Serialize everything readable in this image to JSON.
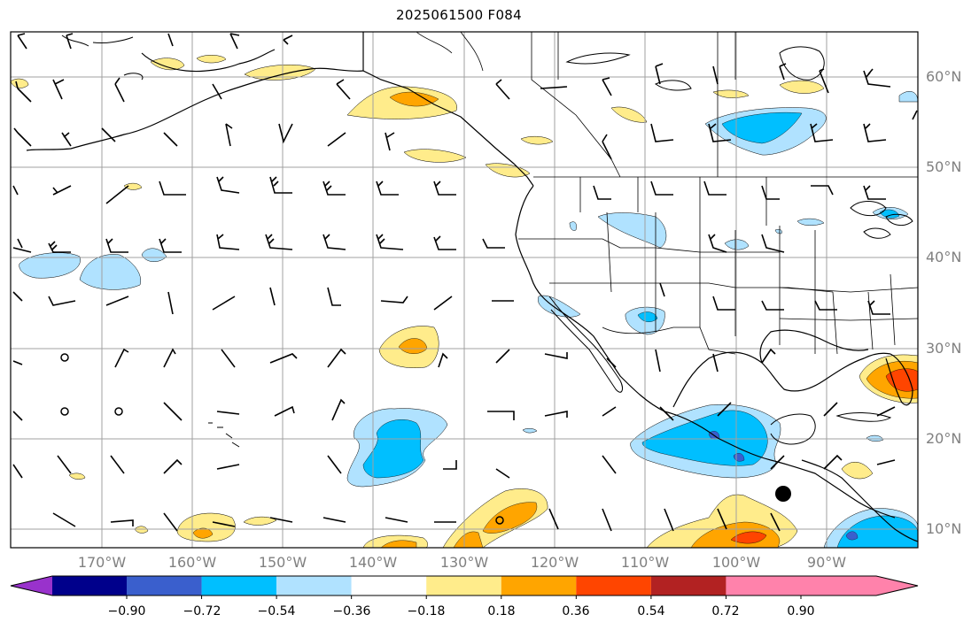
{
  "title": "2025061500 F084",
  "lat_labels": [
    "60°N",
    "50°N",
    "40°N",
    "30°N",
    "20°N",
    "10°N"
  ],
  "lon_labels": [
    "170°W",
    "160°W",
    "150°W",
    "140°W",
    "130°W",
    "120°W",
    "110°W",
    "100°W",
    "90°W"
  ],
  "colorbar": {
    "labels": [
      "−0.90",
      "−0.72",
      "−0.54",
      "−0.36",
      "−0.18",
      "0.18",
      "0.36",
      "0.54",
      "0.72",
      "0.90"
    ],
    "colors": [
      "#9932cc",
      "#00008b",
      "#3a5fcd",
      "#00bfff",
      "#b0e2ff",
      "#ffffff",
      "#ffec8b",
      "#ffa500",
      "#ff4500",
      "#b22222",
      "#ff82ab"
    ]
  },
  "map": {
    "projection": "PlateCarree",
    "extent": {
      "lon_min": -180,
      "lon_max": -80,
      "lat_min": 8,
      "lat_max": 65
    },
    "gridlines": true,
    "hurricane_marker": {
      "lon": -94.5,
      "lat": 13.8
    }
  }
}
